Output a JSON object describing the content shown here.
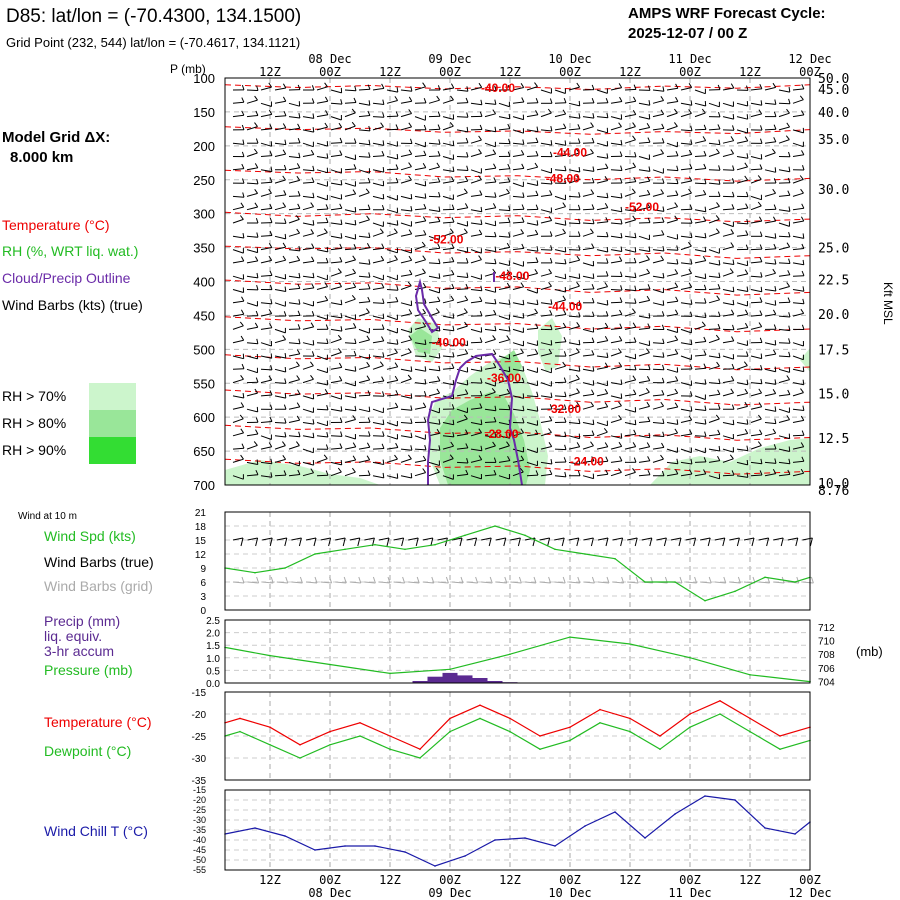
{
  "header": {
    "title": "D85:  lat/lon = (-70.4300, 134.1500)",
    "grid_point": "Grid Point (232, 544) lat/lon = (-70.4617, 134.1121)",
    "cycle_line1": "AMPS WRF Forecast Cycle:",
    "cycle_line2": "2025-12-07 / 00  Z",
    "model_grid_line1": "Model Grid ΔX:",
    "model_grid_line2": "8.000 km"
  },
  "time_axis": {
    "hour_labels": [
      "12Z",
      "00Z",
      "12Z",
      "00Z",
      "12Z",
      "00Z",
      "12Z",
      "00Z",
      "12Z",
      "00Z"
    ],
    "hour_positions": [
      0.5,
      1,
      1.5,
      2,
      2.5,
      3,
      3.5,
      4,
      4.5,
      5
    ],
    "date_labels": [
      "08 Dec",
      "09 Dec",
      "10 Dec",
      "11 Dec",
      "12 Dec"
    ],
    "date_positions": [
      1,
      2,
      3,
      4,
      5
    ],
    "range": [
      0.125,
      5
    ]
  },
  "legend": {
    "temperature": "Temperature (°C)",
    "rh": "RH (%, WRT liq. wat.)",
    "cloud": "Cloud/Precip Outline",
    "wind_barbs": "Wind Barbs (kts) (true)",
    "rh70": "RH > 70%",
    "rh80": "RH > 80%",
    "rh90": "RH > 90%",
    "colors": {
      "rh70": "#ccf5cc",
      "rh80": "#99e699",
      "rh90": "#33dd33",
      "temp": "#ee0000",
      "cloud": "#6a2aa8"
    }
  },
  "chart_data": [
    {
      "type": "contour",
      "name": "upper-air cross section",
      "p_label": "P (mb)",
      "pressure_ticks": [
        100,
        150,
        200,
        250,
        300,
        350,
        400,
        450,
        500,
        550,
        600,
        650,
        700
      ],
      "ylim": [
        100,
        700
      ],
      "right_axis_label": "Kft MSL",
      "height_ticks_kft": [
        {
          "v": "50.0",
          "p": 100
        },
        {
          "v": "45.0",
          "p": 116
        },
        {
          "v": "40.0",
          "p": 150
        },
        {
          "v": "35.0",
          "p": 190
        },
        {
          "v": "30.0",
          "p": 264
        },
        {
          "v": "25.0",
          "p": 350
        },
        {
          "v": "22.5",
          "p": 397
        },
        {
          "v": "20.0",
          "p": 448
        },
        {
          "v": "17.5",
          "p": 500
        },
        {
          "v": "15.0",
          "p": 565
        },
        {
          "v": "12.5",
          "p": 631
        },
        {
          "v": "10.0",
          "p": 697
        },
        {
          "v": "8.76",
          "p": 715
        }
      ],
      "temperature_labels": [
        {
          "text": "-40.00",
          "t": 2.4,
          "p": 115
        },
        {
          "text": "-44.00",
          "t": 3.0,
          "p": 210
        },
        {
          "text": "-48.00",
          "t": 2.94,
          "p": 248
        },
        {
          "text": "-52.00",
          "t": 3.6,
          "p": 290
        },
        {
          "text": "-52.00",
          "t": 1.97,
          "p": 338
        },
        {
          "text": "-48.00",
          "t": 2.52,
          "p": 392
        },
        {
          "text": "-44.00",
          "t": 2.96,
          "p": 437
        },
        {
          "text": "-40.00",
          "t": 1.99,
          "p": 490
        },
        {
          "text": "-36.00",
          "t": 2.45,
          "p": 542
        },
        {
          "text": "-32.00",
          "t": 2.95,
          "p": 588
        },
        {
          "text": "-28.00",
          "t": 2.43,
          "p": 625
        },
        {
          "text": "-24.00",
          "t": 3.14,
          "p": 665
        }
      ],
      "temperature_contours": [
        {
          "p": [
            110,
            114,
            111,
            116,
            113,
            117,
            112,
            115,
            110
          ]
        },
        {
          "p": [
            172,
            176,
            174,
            180,
            178,
            183,
            179,
            182,
            176
          ]
        },
        {
          "p": [
            236,
            240,
            238,
            246,
            244,
            250,
            246,
            252,
            248
          ]
        },
        {
          "p": [
            298,
            304,
            300,
            306,
            303,
            310,
            306,
            312,
            308
          ]
        },
        {
          "p": [
            348,
            352,
            350,
            358,
            356,
            362,
            358,
            366,
            362
          ]
        },
        {
          "p": [
            398,
            404,
            402,
            410,
            408,
            416,
            412,
            420,
            416
          ]
        },
        {
          "p": [
            452,
            458,
            456,
            464,
            462,
            470,
            466,
            474,
            470
          ]
        },
        {
          "p": [
            508,
            514,
            512,
            520,
            518,
            526,
            522,
            530,
            526
          ]
        },
        {
          "p": [
            560,
            566,
            564,
            572,
            570,
            578,
            574,
            582,
            578
          ]
        },
        {
          "p": [
            612,
            618,
            616,
            624,
            622,
            630,
            626,
            634,
            630
          ]
        },
        {
          "p": [
            662,
            668,
            666,
            674,
            672,
            680,
            676,
            684,
            680
          ]
        }
      ]
    },
    {
      "type": "line",
      "name": "10 m wind speed",
      "title": "Wind at 10 m",
      "series_label": "Wind Spd (kts)",
      "barb_true_label": "Wind Barbs (true)",
      "barb_grid_label": "Wind Barbs (grid)",
      "y_ticks": [
        0,
        3,
        6,
        9,
        12,
        15,
        18,
        21
      ],
      "ylim": [
        0,
        21
      ],
      "x": [
        0.125,
        0.375,
        0.625,
        0.875,
        1.125,
        1.375,
        1.625,
        1.875,
        2.125,
        2.375,
        2.625,
        2.875,
        3.125,
        3.375,
        3.625,
        3.875,
        4.125,
        4.375,
        4.625,
        4.875,
        5.0
      ],
      "values": [
        9,
        8,
        9,
        12,
        13,
        14,
        13,
        14,
        16,
        18,
        16,
        13,
        12,
        11,
        6,
        6,
        2,
        4,
        7,
        6,
        7
      ],
      "color": "#22bb22"
    },
    {
      "type": "line+bar",
      "name": "precipitation and pressure",
      "precip_label_1": "Precip (mm)",
      "precip_label_2": "liq. equiv.",
      "precip_label_3": "3-hr accum",
      "pressure_label": "Pressure (mb)",
      "units_label": "(mb)",
      "left_ticks": [
        "0.0",
        "0.5",
        "1.0",
        "1.5",
        "2.0",
        "2.5"
      ],
      "ylim_precip": [
        0,
        2.5
      ],
      "right_ticks": [
        "704",
        "706",
        "708",
        "710",
        "712"
      ],
      "ylim_pressure": [
        703.8,
        713
      ],
      "pressure_x": [
        0.125,
        0.5,
        1.0,
        1.5,
        2.0,
        2.5,
        3.0,
        3.5,
        4.0,
        4.5,
        5.0
      ],
      "pressure_values": [
        709,
        707.8,
        706.5,
        705.2,
        705.8,
        708,
        710.5,
        709.5,
        707.5,
        705,
        704
      ],
      "precip_bars": [
        {
          "t": 1.75,
          "v": 0.08
        },
        {
          "t": 1.875,
          "v": 0.25
        },
        {
          "t": 2.0,
          "v": 0.4
        },
        {
          "t": 2.125,
          "v": 0.3
        },
        {
          "t": 2.25,
          "v": 0.2
        },
        {
          "t": 2.375,
          "v": 0.08
        },
        {
          "t": 2.5,
          "v": 0.03
        }
      ],
      "precip_color": "#5b2a91",
      "pressure_color": "#22bb22"
    },
    {
      "type": "line",
      "name": "temperature and dewpoint",
      "temp_label": "Temperature (°C)",
      "dew_label": "Dewpoint (°C)",
      "y_ticks": [
        -35,
        -30,
        -25,
        -20,
        -15
      ],
      "ylim": [
        -35,
        -15
      ],
      "x": [
        0.125,
        0.25,
        0.5,
        0.75,
        1.0,
        1.25,
        1.5,
        1.75,
        2.0,
        2.25,
        2.5,
        2.75,
        3.0,
        3.25,
        3.5,
        3.75,
        4.0,
        4.25,
        4.5,
        4.75,
        5.0
      ],
      "series": [
        {
          "name": "Temperature",
          "color": "#ee0000",
          "values": [
            -22,
            -21,
            -23,
            -27,
            -24,
            -22,
            -25,
            -28,
            -21,
            -18,
            -21,
            -25,
            -23,
            -19,
            -21,
            -25,
            -20,
            -17,
            -21,
            -25,
            -23
          ]
        },
        {
          "name": "Dewpoint",
          "color": "#22bb22",
          "values": [
            -25,
            -24,
            -27,
            -30,
            -27,
            -25,
            -28,
            -30,
            -24,
            -21,
            -24,
            -28,
            -26,
            -22,
            -24,
            -28,
            -23,
            -20,
            -24,
            -28,
            -26
          ]
        }
      ]
    },
    {
      "type": "line",
      "name": "wind chill",
      "label": "Wind Chill T (°C)",
      "y_ticks": [
        -55,
        -50,
        -45,
        -40,
        -35,
        -30,
        -25,
        -20,
        -15
      ],
      "ylim": [
        -55,
        -15
      ],
      "x": [
        0.125,
        0.375,
        0.625,
        0.875,
        1.125,
        1.375,
        1.625,
        1.875,
        2.125,
        2.375,
        2.625,
        2.875,
        3.125,
        3.375,
        3.625,
        3.875,
        4.125,
        4.375,
        4.625,
        4.875,
        5.0
      ],
      "values": [
        -37,
        -34,
        -38,
        -45,
        -43,
        -43,
        -46,
        -53,
        -48,
        -40,
        -39,
        -43,
        -33,
        -26,
        -39,
        -27,
        -18,
        -20,
        -34,
        -37,
        -31
      ],
      "color": "#1a1aa8"
    }
  ]
}
